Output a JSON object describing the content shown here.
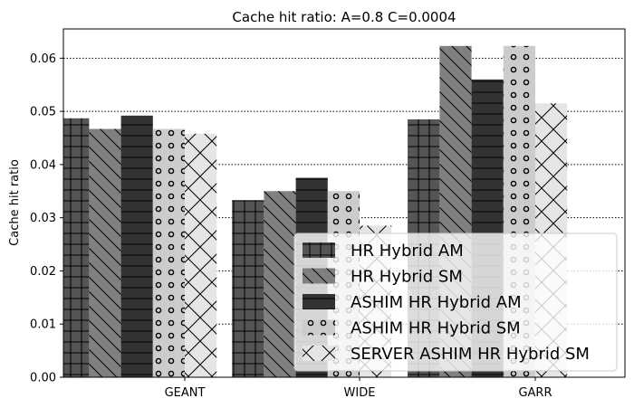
{
  "chart_data": {
    "type": "bar",
    "title": "Cache hit ratio: A=0.8 C=0.0004",
    "xlabel": "",
    "ylabel": "Cache hit ratio",
    "categories": [
      "GEANT",
      "WIDE",
      "GARR"
    ],
    "ylim": [
      0,
      0.0655
    ],
    "yticks": [
      "0.00",
      "0.01",
      "0.02",
      "0.03",
      "0.04",
      "0.05",
      "0.06"
    ],
    "grid": "y-dotted",
    "legend_position": "lower-right",
    "series": [
      {
        "name": "HR Hybrid AM",
        "values": [
          0.0487,
          0.0333,
          0.0485
        ],
        "color": "#555555",
        "hatch": "plus"
      },
      {
        "name": "HR Hybrid SM",
        "values": [
          0.0467,
          0.035,
          0.0623
        ],
        "color": "#808080",
        "hatch": "backslash"
      },
      {
        "name": "ASHIM HR Hybrid AM",
        "values": [
          0.0492,
          0.0375,
          0.056
        ],
        "color": "#333333",
        "hatch": "hline"
      },
      {
        "name": "ASHIM HR Hybrid SM",
        "values": [
          0.0467,
          0.035,
          0.0623
        ],
        "color": "#cccccc",
        "hatch": "circle"
      },
      {
        "name": "SERVER ASHIM HR Hybrid SM",
        "values": [
          0.0458,
          0.0285,
          0.0515
        ],
        "color": "#e5e5e5",
        "hatch": "cross"
      }
    ]
  }
}
